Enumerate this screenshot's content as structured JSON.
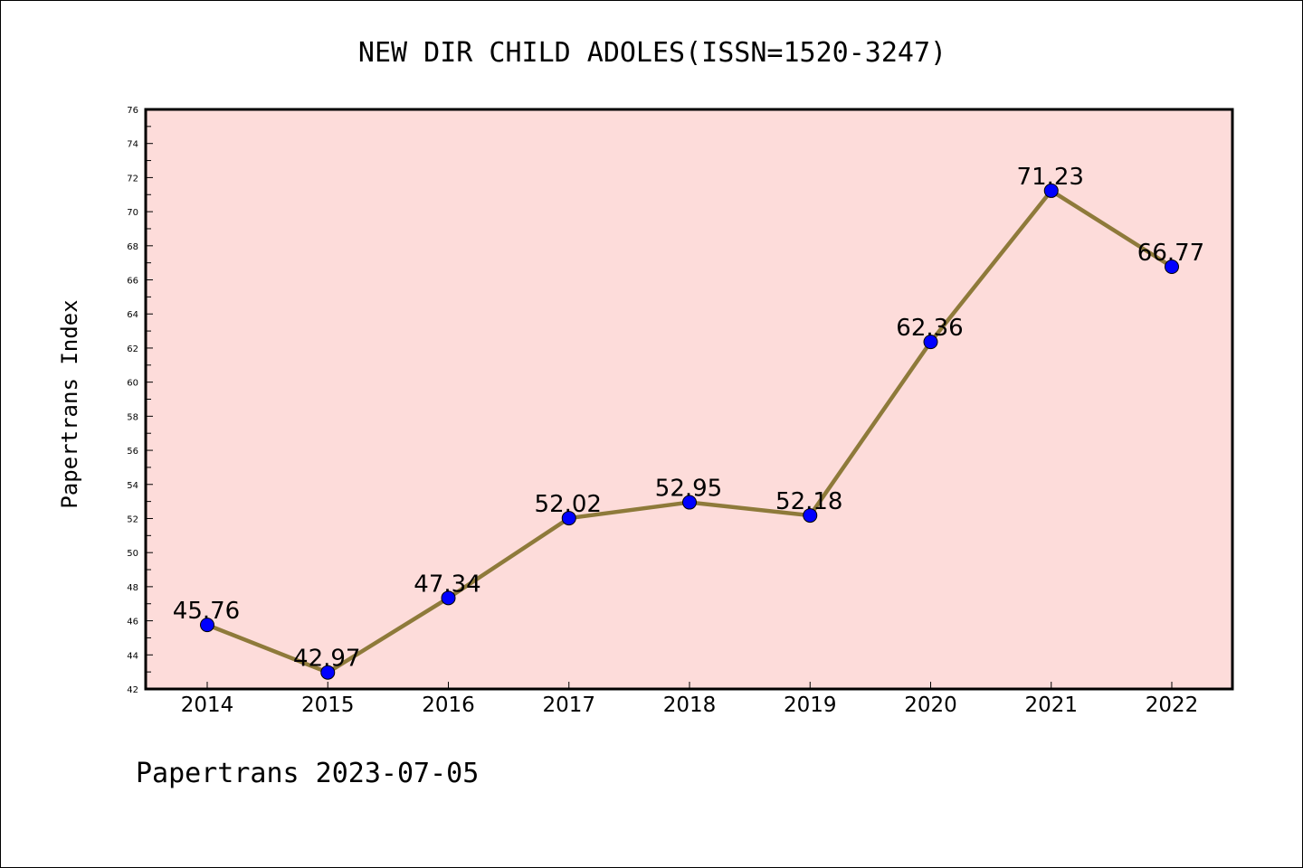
{
  "chart_data": {
    "type": "line",
    "title": "NEW DIR CHILD ADOLES(ISSN=1520-3247)",
    "ylabel": "Papertrans Index",
    "xlabel": "",
    "categories": [
      "2014",
      "2015",
      "2016",
      "2017",
      "2018",
      "2019",
      "2020",
      "2021",
      "2022"
    ],
    "series": [
      {
        "values": [
          45.76,
          42.97,
          47.34,
          52.02,
          52.95,
          52.18,
          62.36,
          71.23,
          66.77
        ],
        "data_labels": [
          "45.76",
          "42.97",
          "47.34",
          "52.02",
          "52.95",
          "52.18",
          "62.36",
          "71.23",
          "66.77"
        ]
      }
    ],
    "ylim": [
      42,
      76
    ],
    "yticks": [
      "42",
      "44",
      "46",
      "48",
      "50",
      "52",
      "54",
      "56",
      "58",
      "60",
      "62",
      "64",
      "66",
      "68",
      "70",
      "72",
      "74",
      "76"
    ],
    "grid": false,
    "colors": {
      "plot_background": "#fddcda",
      "line": "#8e7a3a",
      "marker": "#0000ff"
    }
  },
  "footer": {
    "text": "Papertrans 2023-07-05"
  }
}
